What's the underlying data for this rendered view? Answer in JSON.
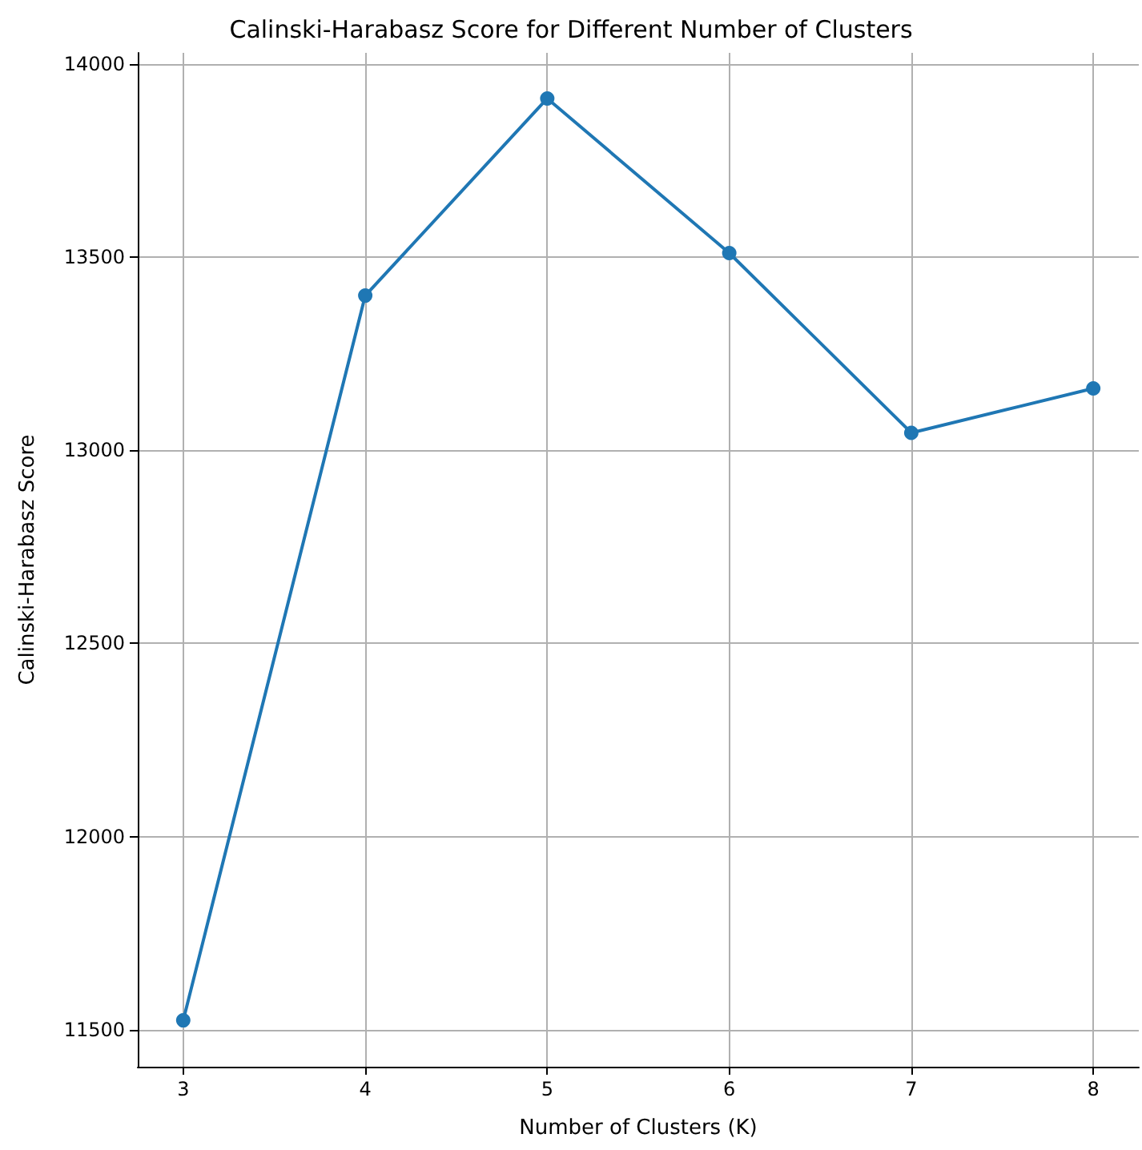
{
  "chart_data": {
    "type": "line",
    "title": "Calinski-Harabasz Score for Different Number of Clusters",
    "xlabel": "Number of Clusters (K)",
    "ylabel": "Calinski-Harabasz Score",
    "x": [
      3,
      4,
      5,
      6,
      7,
      8
    ],
    "series": [
      {
        "color": "#1f77b4",
        "values": [
          11525,
          13400,
          13910,
          13510,
          13045,
          13160
        ]
      }
    ],
    "xlim": [
      2.75,
      8.25
    ],
    "xticks": [
      3,
      4,
      5,
      6,
      7,
      8
    ],
    "ylim": [
      11405,
      14028
    ],
    "yticks": [
      11500,
      12000,
      12500,
      13000,
      13500,
      14000
    ],
    "grid": true,
    "marker": "circle",
    "line_style": "solid"
  }
}
